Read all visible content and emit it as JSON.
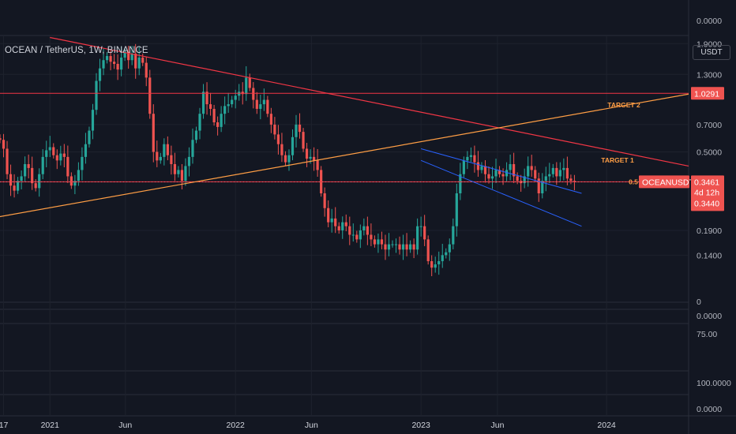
{
  "header": {
    "symbol_title": "OCEAN / TetherUS, 1W, BINANCE",
    "currency_label": "USDT"
  },
  "price_badges": {
    "target2_level": "1.0291",
    "symbol": "OCEANUSDT",
    "last_price": "0.3461",
    "countdown": "4d 12h",
    "low_label": "0.3440",
    "fib_label": "0.5"
  },
  "annotations": {
    "target1": "TARGET 1",
    "target2": "TARGET 2"
  },
  "pane_axes": {
    "top_pane": "0.0000",
    "volume_zero": "0",
    "pane2_value": "0.0000",
    "pane3_value": "75.00",
    "pane4_value": "100.0000",
    "pane5_value": "0.0000"
  },
  "colors": {
    "background": "#131722",
    "up": "#26a69a",
    "down": "#ef5350",
    "trendline": "#f23645",
    "support_line": "#ff9e45",
    "channel": "#2962ff",
    "grid": "#1e222d",
    "axis_text": "#b2b5be"
  },
  "chart_data": {
    "type": "candlestick",
    "y_scale": "log",
    "ylim": [
      0.098,
      2.1
    ],
    "xlim": [
      "2020-09-28",
      "2024-06-10"
    ],
    "y_tick_labels": [
      "1.9000",
      "1.3000",
      "0.7000",
      "0.5000",
      "0.1900",
      "0.1400"
    ],
    "x_tick_labels": [
      {
        "label": "17",
        "date": "2020-10-05"
      },
      {
        "label": "2021",
        "date": "2021-01-04"
      },
      {
        "label": "Jun",
        "date": "2021-06-01"
      },
      {
        "label": "2022",
        "date": "2022-01-03"
      },
      {
        "label": "Jun",
        "date": "2022-06-01"
      },
      {
        "label": "2023",
        "date": "2023-01-02"
      },
      {
        "label": "Jun",
        "date": "2023-06-01"
      },
      {
        "label": "2024",
        "date": "2024-01-01"
      }
    ],
    "horizontal_levels": [
      {
        "label": "TARGET 2",
        "value": 1.0291
      },
      {
        "label": "0.5",
        "value": 0.3461
      }
    ],
    "trendlines": [
      {
        "name": "resistance",
        "from": [
          "2021-01-04",
          2.05
        ],
        "to": [
          "2024-06-10",
          0.42
        ]
      },
      {
        "name": "support",
        "from": [
          "2020-09-07",
          0.22
        ],
        "to": [
          "2024-06-10",
          1.02
        ]
      },
      {
        "name": "channel_upper",
        "from": [
          "2023-01-02",
          0.52
        ],
        "to": [
          "2023-11-13",
          0.3
        ]
      },
      {
        "name": "channel_lower",
        "from": [
          "2023-01-02",
          0.45
        ],
        "to": [
          "2023-11-13",
          0.2
        ]
      }
    ],
    "weekly_closes": [
      0.58,
      0.52,
      0.38,
      0.33,
      0.31,
      0.35,
      0.37,
      0.43,
      0.41,
      0.34,
      0.32,
      0.38,
      0.47,
      0.51,
      0.53,
      0.48,
      0.45,
      0.49,
      0.47,
      0.37,
      0.33,
      0.35,
      0.4,
      0.47,
      0.55,
      0.65,
      0.84,
      1.2,
      1.4,
      1.55,
      1.63,
      1.52,
      1.48,
      1.38,
      1.6,
      1.72,
      1.55,
      1.68,
      1.4,
      1.6,
      1.5,
      1.25,
      0.8,
      0.5,
      0.45,
      0.47,
      0.55,
      0.48,
      0.43,
      0.38,
      0.4,
      0.35,
      0.42,
      0.47,
      0.58,
      0.65,
      0.8,
      1.05,
      0.9,
      0.85,
      0.72,
      0.68,
      0.8,
      0.88,
      0.9,
      0.95,
      1.0,
      1.05,
      1.02,
      1.25,
      1.1,
      0.95,
      0.85,
      0.9,
      0.95,
      0.8,
      0.7,
      0.62,
      0.55,
      0.48,
      0.44,
      0.48,
      0.6,
      0.7,
      0.64,
      0.52,
      0.46,
      0.47,
      0.45,
      0.4,
      0.3,
      0.25,
      0.21,
      0.22,
      0.2,
      0.19,
      0.21,
      0.2,
      0.18,
      0.18,
      0.17,
      0.19,
      0.2,
      0.18,
      0.17,
      0.16,
      0.17,
      0.16,
      0.15,
      0.16,
      0.16,
      0.16,
      0.15,
      0.16,
      0.15,
      0.16,
      0.15,
      0.2,
      0.2,
      0.17,
      0.13,
      0.12,
      0.125,
      0.13,
      0.14,
      0.145,
      0.16,
      0.2,
      0.3,
      0.38,
      0.45,
      0.47,
      0.48,
      0.44,
      0.4,
      0.42,
      0.38,
      0.36,
      0.37,
      0.4,
      0.38,
      0.37,
      0.4,
      0.43,
      0.37,
      0.35,
      0.34,
      0.37,
      0.42,
      0.4,
      0.36,
      0.3,
      0.35,
      0.37,
      0.38,
      0.41,
      0.37,
      0.4,
      0.41,
      0.36,
      0.35,
      0.3461
    ]
  }
}
